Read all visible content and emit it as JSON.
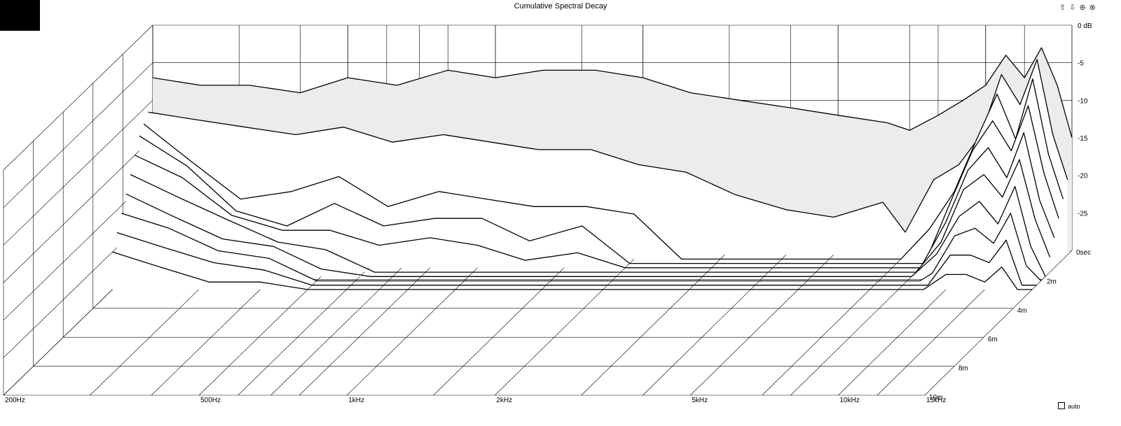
{
  "window": {
    "title": "Cumulative Spectral Decay"
  },
  "controls": {
    "auto_label": "auto",
    "auto_checked": false,
    "nav_icons": [
      "arrow-up-icon",
      "arrow-down-icon",
      "zoom-in-icon",
      "zoom-out-icon"
    ],
    "nav_glyphs": [
      "⇧",
      "⇩",
      "⊕",
      "⊗"
    ]
  },
  "chart_data": {
    "type": "waterfall",
    "title": "Cumulative Spectral Decay",
    "x_axis": {
      "scale": "log",
      "range_hz": [
        200,
        15000
      ],
      "ticks": [
        {
          "hz": 200,
          "label": "200Hz"
        },
        {
          "hz": 500,
          "label": "500Hz"
        },
        {
          "hz": 1000,
          "label": "1kHz"
        },
        {
          "hz": 2000,
          "label": "2kHz"
        },
        {
          "hz": 5000,
          "label": "5kHz"
        },
        {
          "hz": 10000,
          "label": "10kHz"
        },
        {
          "hz": 15000,
          "label": "15kHz"
        }
      ]
    },
    "z_axis": {
      "unit": "ms",
      "ticks": [
        {
          "ms": 0,
          "label": "0sec"
        },
        {
          "ms": 2,
          "label": "2m"
        },
        {
          "ms": 4,
          "label": "4m"
        },
        {
          "ms": 6,
          "label": "6m"
        },
        {
          "ms": 8,
          "label": "8m"
        },
        {
          "ms": 10,
          "label": "10m"
        }
      ]
    },
    "y_axis": {
      "unit": "dB",
      "range_db": [
        -30,
        0
      ],
      "ticks": [
        {
          "db": 0,
          "label": "0 dB"
        },
        {
          "db": -5,
          "label": "-5"
        },
        {
          "db": -10,
          "label": "-10"
        },
        {
          "db": -15,
          "label": "-15"
        },
        {
          "db": -20,
          "label": "-20"
        },
        {
          "db": -25,
          "label": "-25"
        }
      ]
    },
    "slices": [
      {
        "t_ms": 0.0,
        "points": [
          [
            200,
            -7
          ],
          [
            250,
            -8
          ],
          [
            315,
            -8
          ],
          [
            400,
            -9
          ],
          [
            500,
            -7
          ],
          [
            630,
            -8
          ],
          [
            800,
            -6
          ],
          [
            1000,
            -7
          ],
          [
            1250,
            -6
          ],
          [
            1600,
            -6
          ],
          [
            2000,
            -7
          ],
          [
            2500,
            -9
          ],
          [
            3150,
            -10
          ],
          [
            4000,
            -11
          ],
          [
            5000,
            -12
          ],
          [
            6300,
            -13
          ],
          [
            7000,
            -14
          ],
          [
            8000,
            -12
          ],
          [
            9000,
            -10
          ],
          [
            10000,
            -8
          ],
          [
            11000,
            -4
          ],
          [
            12000,
            -7
          ],
          [
            13000,
            -3
          ],
          [
            14000,
            -8
          ],
          [
            15000,
            -15
          ]
        ]
      },
      {
        "t_ms": 0.3,
        "points": [
          [
            200,
            -11
          ],
          [
            250,
            -12
          ],
          [
            315,
            -13
          ],
          [
            400,
            -14
          ],
          [
            500,
            -13
          ],
          [
            630,
            -15
          ],
          [
            800,
            -14
          ],
          [
            1000,
            -15
          ],
          [
            1250,
            -16
          ],
          [
            1600,
            -16
          ],
          [
            2000,
            -18
          ],
          [
            2500,
            -19
          ],
          [
            3150,
            -22
          ],
          [
            4000,
            -24
          ],
          [
            5000,
            -25
          ],
          [
            6300,
            -23
          ],
          [
            7000,
            -27
          ],
          [
            8000,
            -20
          ],
          [
            9000,
            -18
          ],
          [
            10000,
            -14
          ],
          [
            11000,
            -6
          ],
          [
            12000,
            -10
          ],
          [
            13000,
            -4
          ],
          [
            14000,
            -14
          ],
          [
            15000,
            -20
          ]
        ]
      },
      {
        "t_ms": 0.6,
        "points": [
          [
            200,
            -12
          ],
          [
            250,
            -17
          ],
          [
            315,
            -22
          ],
          [
            400,
            -21
          ],
          [
            500,
            -19
          ],
          [
            630,
            -23
          ],
          [
            800,
            -21
          ],
          [
            1000,
            -22
          ],
          [
            1250,
            -23
          ],
          [
            1600,
            -23
          ],
          [
            2000,
            -24
          ],
          [
            2500,
            -30
          ],
          [
            4000,
            -30
          ],
          [
            6000,
            -30
          ],
          [
            7000,
            -30
          ],
          [
            8000,
            -26
          ],
          [
            9000,
            -21
          ],
          [
            10000,
            -14
          ],
          [
            11000,
            -8
          ],
          [
            12000,
            -14
          ],
          [
            13000,
            -6
          ],
          [
            14000,
            -16
          ],
          [
            15000,
            -22
          ]
        ]
      },
      {
        "t_ms": 0.9,
        "points": [
          [
            200,
            -13
          ],
          [
            250,
            -17
          ],
          [
            315,
            -23
          ],
          [
            400,
            -25
          ],
          [
            500,
            -22
          ],
          [
            630,
            -25
          ],
          [
            800,
            -24
          ],
          [
            1000,
            -24
          ],
          [
            1250,
            -27
          ],
          [
            1600,
            -25
          ],
          [
            2000,
            -30
          ],
          [
            8000,
            -30
          ],
          [
            9000,
            -22
          ],
          [
            10000,
            -15
          ],
          [
            11000,
            -11
          ],
          [
            12000,
            -15
          ],
          [
            13000,
            -9
          ],
          [
            14000,
            -18
          ],
          [
            15000,
            -24
          ]
        ]
      },
      {
        "t_ms": 1.2,
        "points": [
          [
            200,
            -15
          ],
          [
            250,
            -18
          ],
          [
            315,
            -23
          ],
          [
            400,
            -25
          ],
          [
            500,
            -25
          ],
          [
            630,
            -27
          ],
          [
            800,
            -26
          ],
          [
            1000,
            -27
          ],
          [
            1250,
            -29
          ],
          [
            1600,
            -28
          ],
          [
            2000,
            -30
          ],
          [
            8000,
            -30
          ],
          [
            9000,
            -24
          ],
          [
            10000,
            -17
          ],
          [
            11000,
            -14
          ],
          [
            12000,
            -18
          ],
          [
            13000,
            -12
          ],
          [
            14000,
            -21
          ],
          [
            15000,
            -26
          ]
        ]
      },
      {
        "t_ms": 1.5,
        "points": [
          [
            200,
            -17
          ],
          [
            250,
            -20
          ],
          [
            315,
            -23
          ],
          [
            400,
            -26
          ],
          [
            500,
            -27
          ],
          [
            630,
            -30
          ],
          [
            1000,
            -30
          ],
          [
            1250,
            -30
          ],
          [
            8000,
            -30
          ],
          [
            9000,
            -26
          ],
          [
            10000,
            -19
          ],
          [
            11000,
            -17
          ],
          [
            12000,
            -20
          ],
          [
            13000,
            -15
          ],
          [
            14000,
            -23
          ],
          [
            15000,
            -28
          ]
        ]
      },
      {
        "t_ms": 1.8,
        "points": [
          [
            200,
            -19
          ],
          [
            250,
            -22
          ],
          [
            315,
            -25
          ],
          [
            400,
            -26
          ],
          [
            500,
            -29
          ],
          [
            630,
            -30
          ],
          [
            8000,
            -30
          ],
          [
            9000,
            -27
          ],
          [
            10000,
            -22
          ],
          [
            11000,
            -20
          ],
          [
            12000,
            -23
          ],
          [
            13000,
            -18
          ],
          [
            14000,
            -26
          ],
          [
            15000,
            -30
          ]
        ]
      },
      {
        "t_ms": 2.1,
        "points": [
          [
            200,
            -21
          ],
          [
            250,
            -23
          ],
          [
            315,
            -26
          ],
          [
            400,
            -27
          ],
          [
            500,
            -30
          ],
          [
            8500,
            -30
          ],
          [
            9000,
            -29
          ],
          [
            10000,
            -24
          ],
          [
            11000,
            -23
          ],
          [
            12000,
            -25
          ],
          [
            13000,
            -21
          ],
          [
            14000,
            -28
          ],
          [
            15000,
            -30
          ]
        ]
      },
      {
        "t_ms": 2.4,
        "points": [
          [
            200,
            -23
          ],
          [
            250,
            -25
          ],
          [
            315,
            -27
          ],
          [
            400,
            -28
          ],
          [
            500,
            -30
          ],
          [
            9000,
            -30
          ],
          [
            10000,
            -26
          ],
          [
            11000,
            -26
          ],
          [
            12000,
            -27
          ],
          [
            13000,
            -24
          ],
          [
            14000,
            -30
          ],
          [
            15000,
            -30
          ]
        ]
      },
      {
        "t_ms": 2.7,
        "points": [
          [
            200,
            -25
          ],
          [
            250,
            -27
          ],
          [
            315,
            -29
          ],
          [
            400,
            -29
          ],
          [
            500,
            -30
          ],
          [
            9000,
            -30
          ],
          [
            10000,
            -28
          ],
          [
            11000,
            -28
          ],
          [
            12000,
            -29
          ],
          [
            13000,
            -27
          ],
          [
            14000,
            -30
          ],
          [
            15000,
            -30
          ]
        ]
      }
    ]
  }
}
